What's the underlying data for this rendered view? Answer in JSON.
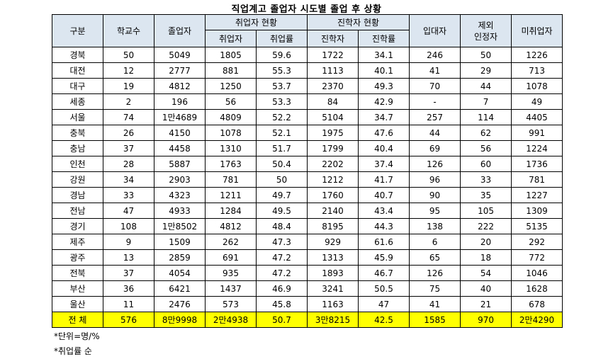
{
  "title": "직업계고 졸업자 시도별 졸업 후 상황",
  "headers": {
    "region": "구분",
    "schools": "학교수",
    "graduates": "졸업자",
    "employment_group": "취업자 현황",
    "employed": "취업자",
    "employment_rate": "취업률",
    "advancement_group": "진학자 현황",
    "advanced": "진학자",
    "advancement_rate": "진학률",
    "military": "입대자",
    "excluded": "제외\n인정자",
    "unemployed": "미취업자"
  },
  "rows": [
    [
      "경북",
      "50",
      "5049",
      "1805",
      "59.6",
      "1722",
      "34.1",
      "246",
      "50",
      "1226"
    ],
    [
      "대전",
      "12",
      "2777",
      "881",
      "55.3",
      "1113",
      "40.1",
      "41",
      "29",
      "713"
    ],
    [
      "대구",
      "19",
      "4812",
      "1250",
      "53.7",
      "2370",
      "49.3",
      "70",
      "44",
      "1078"
    ],
    [
      "세종",
      "2",
      "196",
      "56",
      "53.3",
      "84",
      "42.9",
      "-",
      "7",
      "49"
    ],
    [
      "서울",
      "74",
      "1만4689",
      "4809",
      "52.2",
      "5104",
      "34.7",
      "257",
      "114",
      "4405"
    ],
    [
      "충북",
      "26",
      "4150",
      "1078",
      "52.1",
      "1975",
      "47.6",
      "44",
      "62",
      "991"
    ],
    [
      "충남",
      "37",
      "4458",
      "1310",
      "51.7",
      "1799",
      "40.4",
      "69",
      "56",
      "1224"
    ],
    [
      "인천",
      "28",
      "5887",
      "1763",
      "50.4",
      "2202",
      "37.4",
      "126",
      "60",
      "1736"
    ],
    [
      "강원",
      "34",
      "2903",
      "781",
      "50",
      "1212",
      "41.7",
      "96",
      "33",
      "781"
    ],
    [
      "경남",
      "33",
      "4323",
      "1211",
      "49.7",
      "1760",
      "40.7",
      "90",
      "35",
      "1227"
    ],
    [
      "전남",
      "47",
      "4933",
      "1284",
      "49.5",
      "2140",
      "43.4",
      "95",
      "105",
      "1309"
    ],
    [
      "경기",
      "108",
      "1만8502",
      "4812",
      "48.4",
      "8195",
      "44.3",
      "138",
      "222",
      "5135"
    ],
    [
      "제주",
      "9",
      "1509",
      "262",
      "47.3",
      "929",
      "61.6",
      "6",
      "20",
      "292"
    ],
    [
      "광주",
      "13",
      "2859",
      "691",
      "47.2",
      "1313",
      "45.9",
      "65",
      "18",
      "772"
    ],
    [
      "전북",
      "37",
      "4054",
      "935",
      "47.2",
      "1893",
      "46.7",
      "126",
      "54",
      "1046"
    ],
    [
      "부산",
      "36",
      "6421",
      "1437",
      "46.9",
      "3241",
      "50.5",
      "75",
      "40",
      "1628"
    ],
    [
      "울산",
      "11",
      "2476",
      "573",
      "45.8",
      "1163",
      "47",
      "41",
      "21",
      "678"
    ]
  ],
  "total": [
    "전 체",
    "576",
    "8만9998",
    "2만4938",
    "50.7",
    "3만8215",
    "42.5",
    "1585",
    "970",
    "2만4290"
  ],
  "colors": {
    "header_bg": "#dce6f1",
    "total_bg": "#ffff00"
  },
  "notes": [
    "*단위=명/%",
    "*취업률 순"
  ]
}
